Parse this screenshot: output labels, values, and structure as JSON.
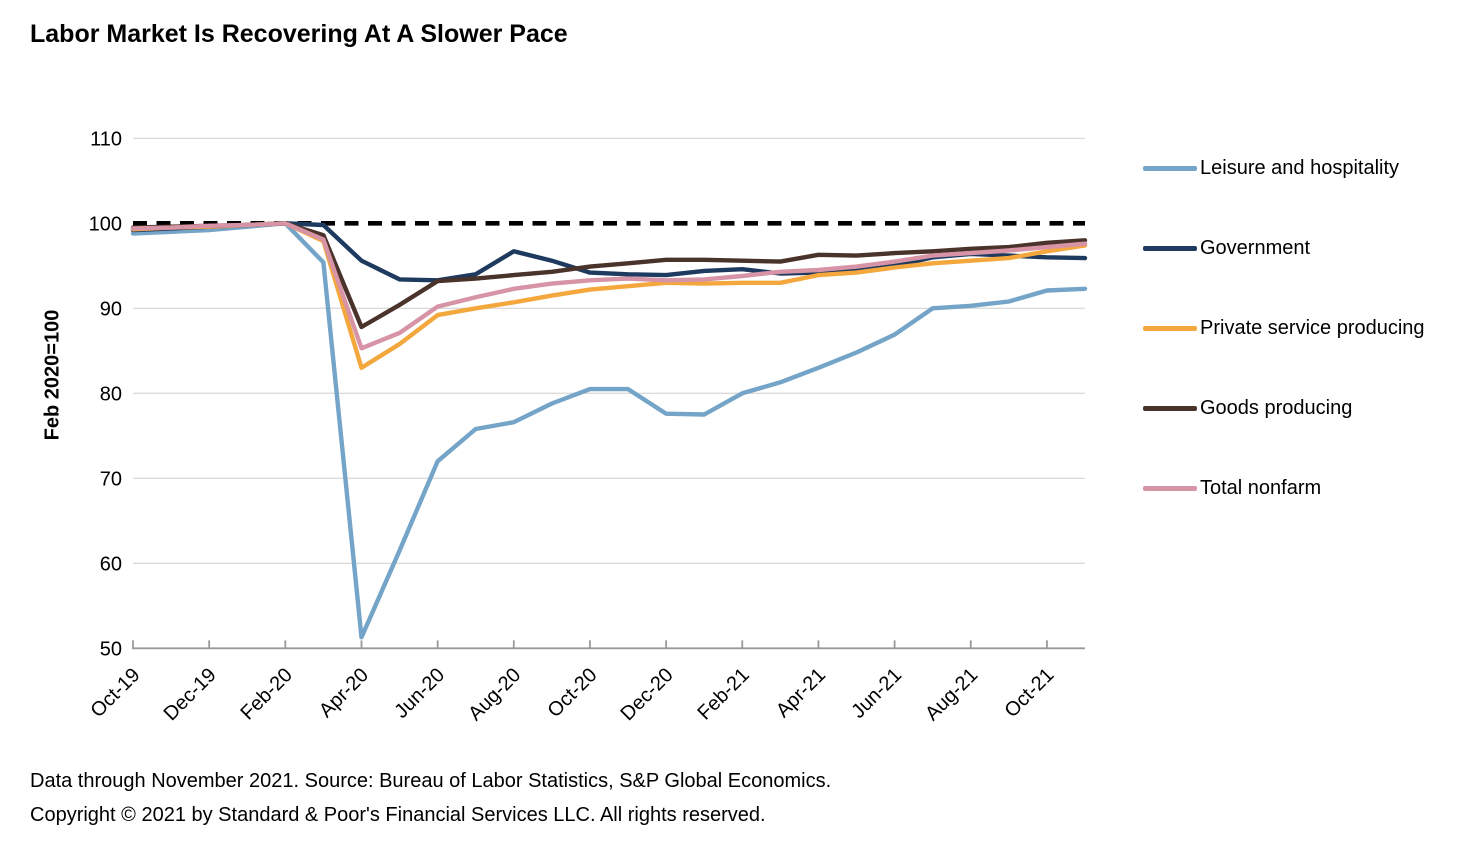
{
  "footer": {
    "line1": "Data through November 2021. Source: Bureau of Labor Statistics, S&P Global Economics.",
    "line2": "Copyright © 2021 by Standard & Poor's Financial Services LLC. All rights reserved."
  },
  "chart_data": {
    "type": "line",
    "title": "Labor Market Is Recovering At A Slower Pace",
    "ylabel": "Feb 2020=100",
    "xlabel": "",
    "ylim": [
      50,
      110
    ],
    "yticks": [
      50,
      60,
      70,
      80,
      90,
      100,
      110
    ],
    "grid": "horizontal-light",
    "legend_position": "right",
    "x_tick_interval": 2,
    "x": [
      "Oct-19",
      "Nov-19",
      "Dec-19",
      "Jan-20",
      "Feb-20",
      "Mar-20",
      "Apr-20",
      "May-20",
      "Jun-20",
      "Jul-20",
      "Aug-20",
      "Sep-20",
      "Oct-20",
      "Nov-20",
      "Dec-20",
      "Jan-21",
      "Feb-21",
      "Mar-21",
      "Apr-21",
      "May-21",
      "Jun-21",
      "Jul-21",
      "Aug-21",
      "Sep-21",
      "Oct-21",
      "Nov-21"
    ],
    "x_tick_labels": [
      "Oct-19",
      "Dec-19",
      "Feb-20",
      "Apr-20",
      "Jun-20",
      "Aug-20",
      "Oct-20",
      "Dec-20",
      "Feb-21",
      "Apr-21",
      "Jun-21",
      "Aug-21",
      "Oct-21"
    ],
    "reference_line": {
      "value": 100,
      "style": "dashed",
      "color": "#000000"
    },
    "series": [
      {
        "name": "Leisure and hospitality",
        "color": "#74A4C7",
        "values": [
          98.8,
          99.0,
          99.2,
          99.6,
          100.0,
          95.4,
          51.3,
          61.5,
          72.0,
          75.8,
          76.6,
          78.8,
          80.5,
          80.5,
          77.6,
          77.5,
          80.0,
          81.3,
          83.0,
          84.8,
          86.9,
          90.0,
          90.3,
          90.8,
          92.1,
          92.3
        ]
      },
      {
        "name": "Government",
        "color": "#1E3A5F",
        "values": [
          99.2,
          99.4,
          99.6,
          99.8,
          100.0,
          99.8,
          95.6,
          93.4,
          93.3,
          94.0,
          96.7,
          95.6,
          94.2,
          94.0,
          93.9,
          94.4,
          94.6,
          94.1,
          94.2,
          94.4,
          95.0,
          96.0,
          96.4,
          96.2,
          96.0,
          95.9
        ]
      },
      {
        "name": "Private service producing",
        "color": "#F3A73D",
        "values": [
          99.3,
          99.5,
          99.6,
          99.8,
          100.0,
          97.9,
          83.0,
          85.8,
          89.2,
          90.0,
          90.7,
          91.5,
          92.2,
          92.6,
          93.0,
          92.9,
          93.0,
          93.0,
          93.9,
          94.2,
          94.8,
          95.3,
          95.6,
          95.9,
          96.7,
          97.4
        ]
      },
      {
        "name": "Goods producing",
        "color": "#4A332A",
        "values": [
          99.5,
          99.6,
          99.7,
          99.8,
          100.0,
          98.6,
          87.8,
          90.4,
          93.2,
          93.5,
          93.9,
          94.3,
          94.9,
          95.3,
          95.7,
          95.7,
          95.6,
          95.5,
          96.3,
          96.2,
          96.5,
          96.7,
          97.0,
          97.2,
          97.7,
          98.0
        ]
      },
      {
        "name": "Total nonfarm",
        "color": "#D794A6",
        "values": [
          99.4,
          99.5,
          99.7,
          99.8,
          100.0,
          98.1,
          85.3,
          87.1,
          90.2,
          91.3,
          92.3,
          92.9,
          93.3,
          93.5,
          93.3,
          93.4,
          93.8,
          94.3,
          94.5,
          94.9,
          95.5,
          96.2,
          96.5,
          96.8,
          97.2,
          97.6
        ]
      }
    ],
    "style": {
      "gridline_color": "#DBDBDB",
      "axis_color": "#9A9A9A",
      "text_color": "#000000",
      "line_width": 4.4
    }
  }
}
